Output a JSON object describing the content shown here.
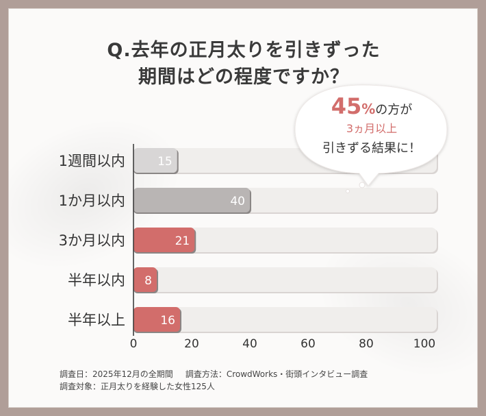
{
  "title": {
    "line1": "Q.去年の正月太りを引きずった",
    "line2": "期間はどの程度ですか？"
  },
  "callout": {
    "highlight_value": "45",
    "highlight_unit": "%",
    "line1_rest": "の方が",
    "line2": "3ヵ月以上",
    "line3": "引きずる結果に！"
  },
  "chart_data": {
    "type": "bar",
    "orientation": "horizontal",
    "categories": [
      "1週間以内",
      "1か月以内",
      "3か月以内",
      "半年以内",
      "半年以上"
    ],
    "values": [
      15,
      40,
      21,
      8,
      16
    ],
    "bar_colors": [
      "#d8d6d6",
      "#b9b5b4",
      "#d26d6b",
      "#d26d6b",
      "#d26d6b"
    ],
    "track_color": "#f0eeec",
    "xticks": [
      0,
      20,
      40,
      60,
      80,
      100
    ],
    "xlim": [
      0,
      100
    ],
    "grid": false
  },
  "footer": {
    "survey_date": "調査日：2025年12月の全期間",
    "survey_method": "調査方法：CrowdWorks・街頭インタビュー調査",
    "survey_target": "調査対象：正月太りを経験した女性125人"
  },
  "colors": {
    "accent": "#d26d6b",
    "gray_bar": "#b9b5b4",
    "light_bar": "#d8d6d6",
    "border": "#b09e98"
  }
}
